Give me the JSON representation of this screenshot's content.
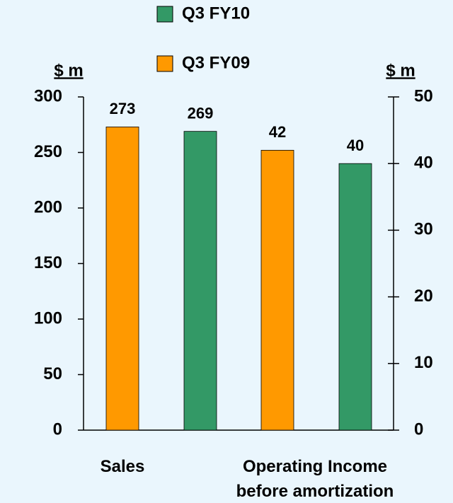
{
  "chart_data": {
    "type": "bar",
    "categories": [
      "Sales",
      "Operating Income before amortization"
    ],
    "series": [
      {
        "name": "Q3 FY10",
        "color": "#339966",
        "values": [
          269,
          40
        ],
        "axes": [
          "y",
          "y2"
        ]
      },
      {
        "name": "Q3 FY09",
        "color": "#ff9900",
        "values": [
          273,
          42
        ],
        "axes": [
          "y",
          "y2"
        ]
      }
    ],
    "bar_order": [
      1,
      0
    ],
    "ylabel": "$ m",
    "y2label": "$ m",
    "ylim": [
      0,
      300
    ],
    "yticks": [
      0,
      50,
      100,
      150,
      200,
      250,
      300
    ],
    "y2lim": [
      0,
      50
    ],
    "y2ticks": [
      0,
      10,
      20,
      30,
      40,
      50
    ]
  }
}
